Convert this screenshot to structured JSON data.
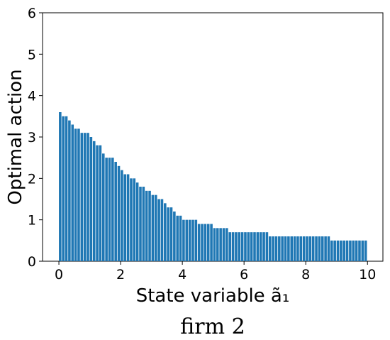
{
  "chart_data": {
    "type": "bar",
    "xlabel": "State variable ã₁",
    "ylabel": "Optimal action",
    "caption": "firm 2",
    "color": "#1f77b4",
    "x": [
      0,
      0.1,
      0.2,
      0.3,
      0.4,
      0.5,
      0.6,
      0.7,
      0.8,
      0.9,
      1,
      1.1,
      1.2,
      1.3,
      1.4,
      1.5,
      1.6,
      1.7,
      1.8,
      1.9,
      2,
      2.1,
      2.2,
      2.3,
      2.4,
      2.5,
      2.6,
      2.7,
      2.8,
      2.9,
      3,
      3.1,
      3.2,
      3.3,
      3.4,
      3.5,
      3.6,
      3.7,
      3.8,
      3.9,
      4,
      4.1,
      4.2,
      4.3,
      4.4,
      4.5,
      4.6,
      4.7,
      4.8,
      4.9,
      5,
      5.1,
      5.2,
      5.3,
      5.4,
      5.5,
      5.6,
      5.7,
      5.8,
      5.9,
      6,
      6.1,
      6.2,
      6.3,
      6.4,
      6.5,
      6.6,
      6.7,
      6.8,
      6.9,
      7,
      7.1,
      7.2,
      7.3,
      7.4,
      7.5,
      7.6,
      7.7,
      7.8,
      7.9,
      8,
      8.1,
      8.2,
      8.3,
      8.4,
      8.5,
      8.6,
      8.7,
      8.8,
      8.9,
      9,
      9.1,
      9.2,
      9.3,
      9.4,
      9.5,
      9.6,
      9.7,
      9.8,
      9.9
    ],
    "values": [
      3.6,
      3.5,
      3.5,
      3.4,
      3.3,
      3.2,
      3.2,
      3.1,
      3.1,
      3.1,
      3.0,
      2.9,
      2.8,
      2.8,
      2.6,
      2.5,
      2.5,
      2.5,
      2.4,
      2.3,
      2.2,
      2.1,
      2.1,
      2.0,
      2.0,
      1.9,
      1.8,
      1.8,
      1.7,
      1.7,
      1.6,
      1.6,
      1.5,
      1.5,
      1.4,
      1.3,
      1.3,
      1.2,
      1.1,
      1.1,
      1.0,
      1.0,
      1.0,
      1.0,
      1.0,
      0.9,
      0.9,
      0.9,
      0.9,
      0.9,
      0.8,
      0.8,
      0.8,
      0.8,
      0.8,
      0.7,
      0.7,
      0.7,
      0.7,
      0.7,
      0.7,
      0.7,
      0.7,
      0.7,
      0.7,
      0.7,
      0.7,
      0.7,
      0.6,
      0.6,
      0.6,
      0.6,
      0.6,
      0.6,
      0.6,
      0.6,
      0.6,
      0.6,
      0.6,
      0.6,
      0.6,
      0.6,
      0.6,
      0.6,
      0.6,
      0.6,
      0.6,
      0.6,
      0.5,
      0.5,
      0.5,
      0.5,
      0.5,
      0.5,
      0.5,
      0.5,
      0.5,
      0.5,
      0.5,
      0.5
    ],
    "xlim": [
      -0.53,
      10.5
    ],
    "xticks": [
      0,
      2,
      4,
      6,
      8,
      10
    ],
    "ylim": [
      0,
      6
    ],
    "yticks": [
      0,
      1,
      2,
      3,
      4,
      5,
      6
    ]
  }
}
